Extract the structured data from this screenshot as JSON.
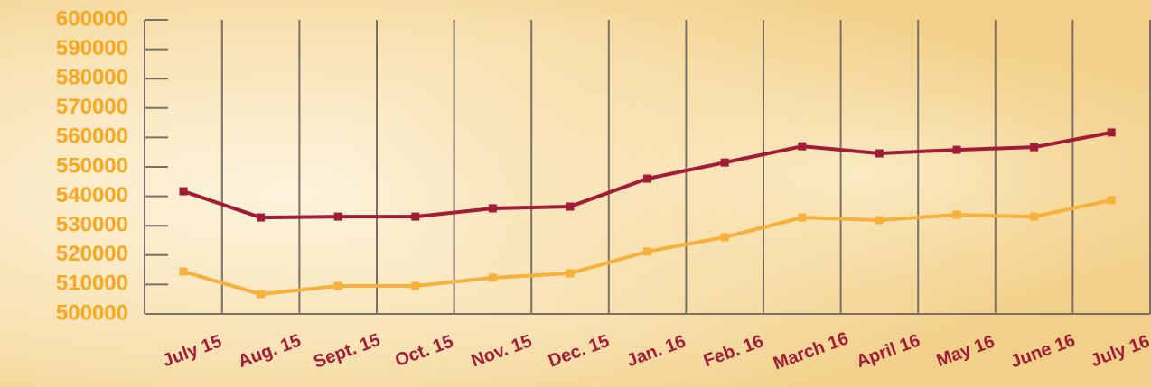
{
  "chart_data": {
    "type": "line",
    "categories": [
      "July 15",
      "Aug. 15",
      "Sept. 15",
      "Oct. 15",
      "Nov. 15",
      "Dec. 15",
      "Jan. 16",
      "Feb. 16",
      "March 16",
      "April 16",
      "May 16",
      "June 16",
      "July 16"
    ],
    "series": [
      {
        "color": "#a31c37",
        "values": [
          541700,
          532800,
          533100,
          533100,
          535900,
          536500,
          546000,
          551500,
          557000,
          554600,
          555800,
          556700,
          561700
        ]
      },
      {
        "color": "#f7b03a",
        "values": [
          514400,
          506700,
          509500,
          509500,
          512300,
          513800,
          521200,
          526100,
          532800,
          531900,
          533700,
          533100,
          538700
        ]
      }
    ],
    "ylim": [
      500000,
      600000
    ],
    "yticks": [
      500000,
      510000,
      520000,
      530000,
      540000,
      550000,
      560000,
      570000,
      580000,
      590000,
      600000
    ],
    "grid": true
  }
}
